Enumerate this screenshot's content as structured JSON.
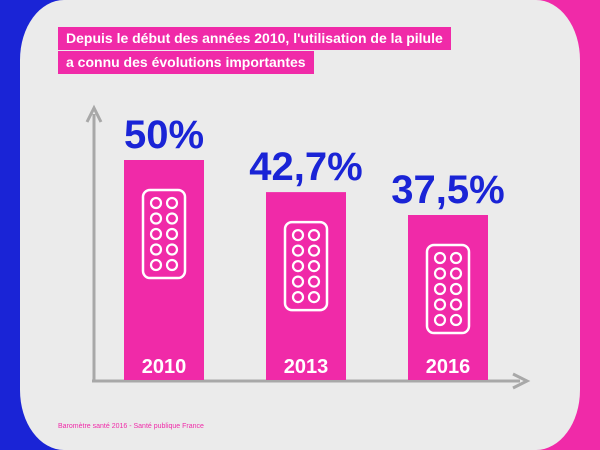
{
  "colors": {
    "blue": "#1a24d6",
    "magenta": "#f02aa8",
    "card": "#ebebeb",
    "axis": "#a8a8a8"
  },
  "title_lines": [
    "Depuis le début des années 2010, l'utilisation de la pilule",
    "a connu des évolutions importantes"
  ],
  "source": "Baromètre santé 2016 - Santé publique France",
  "chart_data": {
    "type": "bar",
    "categories": [
      "2010",
      "2013",
      "2016"
    ],
    "values": [
      50,
      42.7,
      37.5
    ],
    "value_labels": [
      "50%",
      "42,7%",
      "37,5%"
    ],
    "ylim": [
      0,
      60
    ],
    "grid": false,
    "title": "",
    "xlabel": "",
    "ylabel": "",
    "icon": "pill-blister-icon"
  }
}
